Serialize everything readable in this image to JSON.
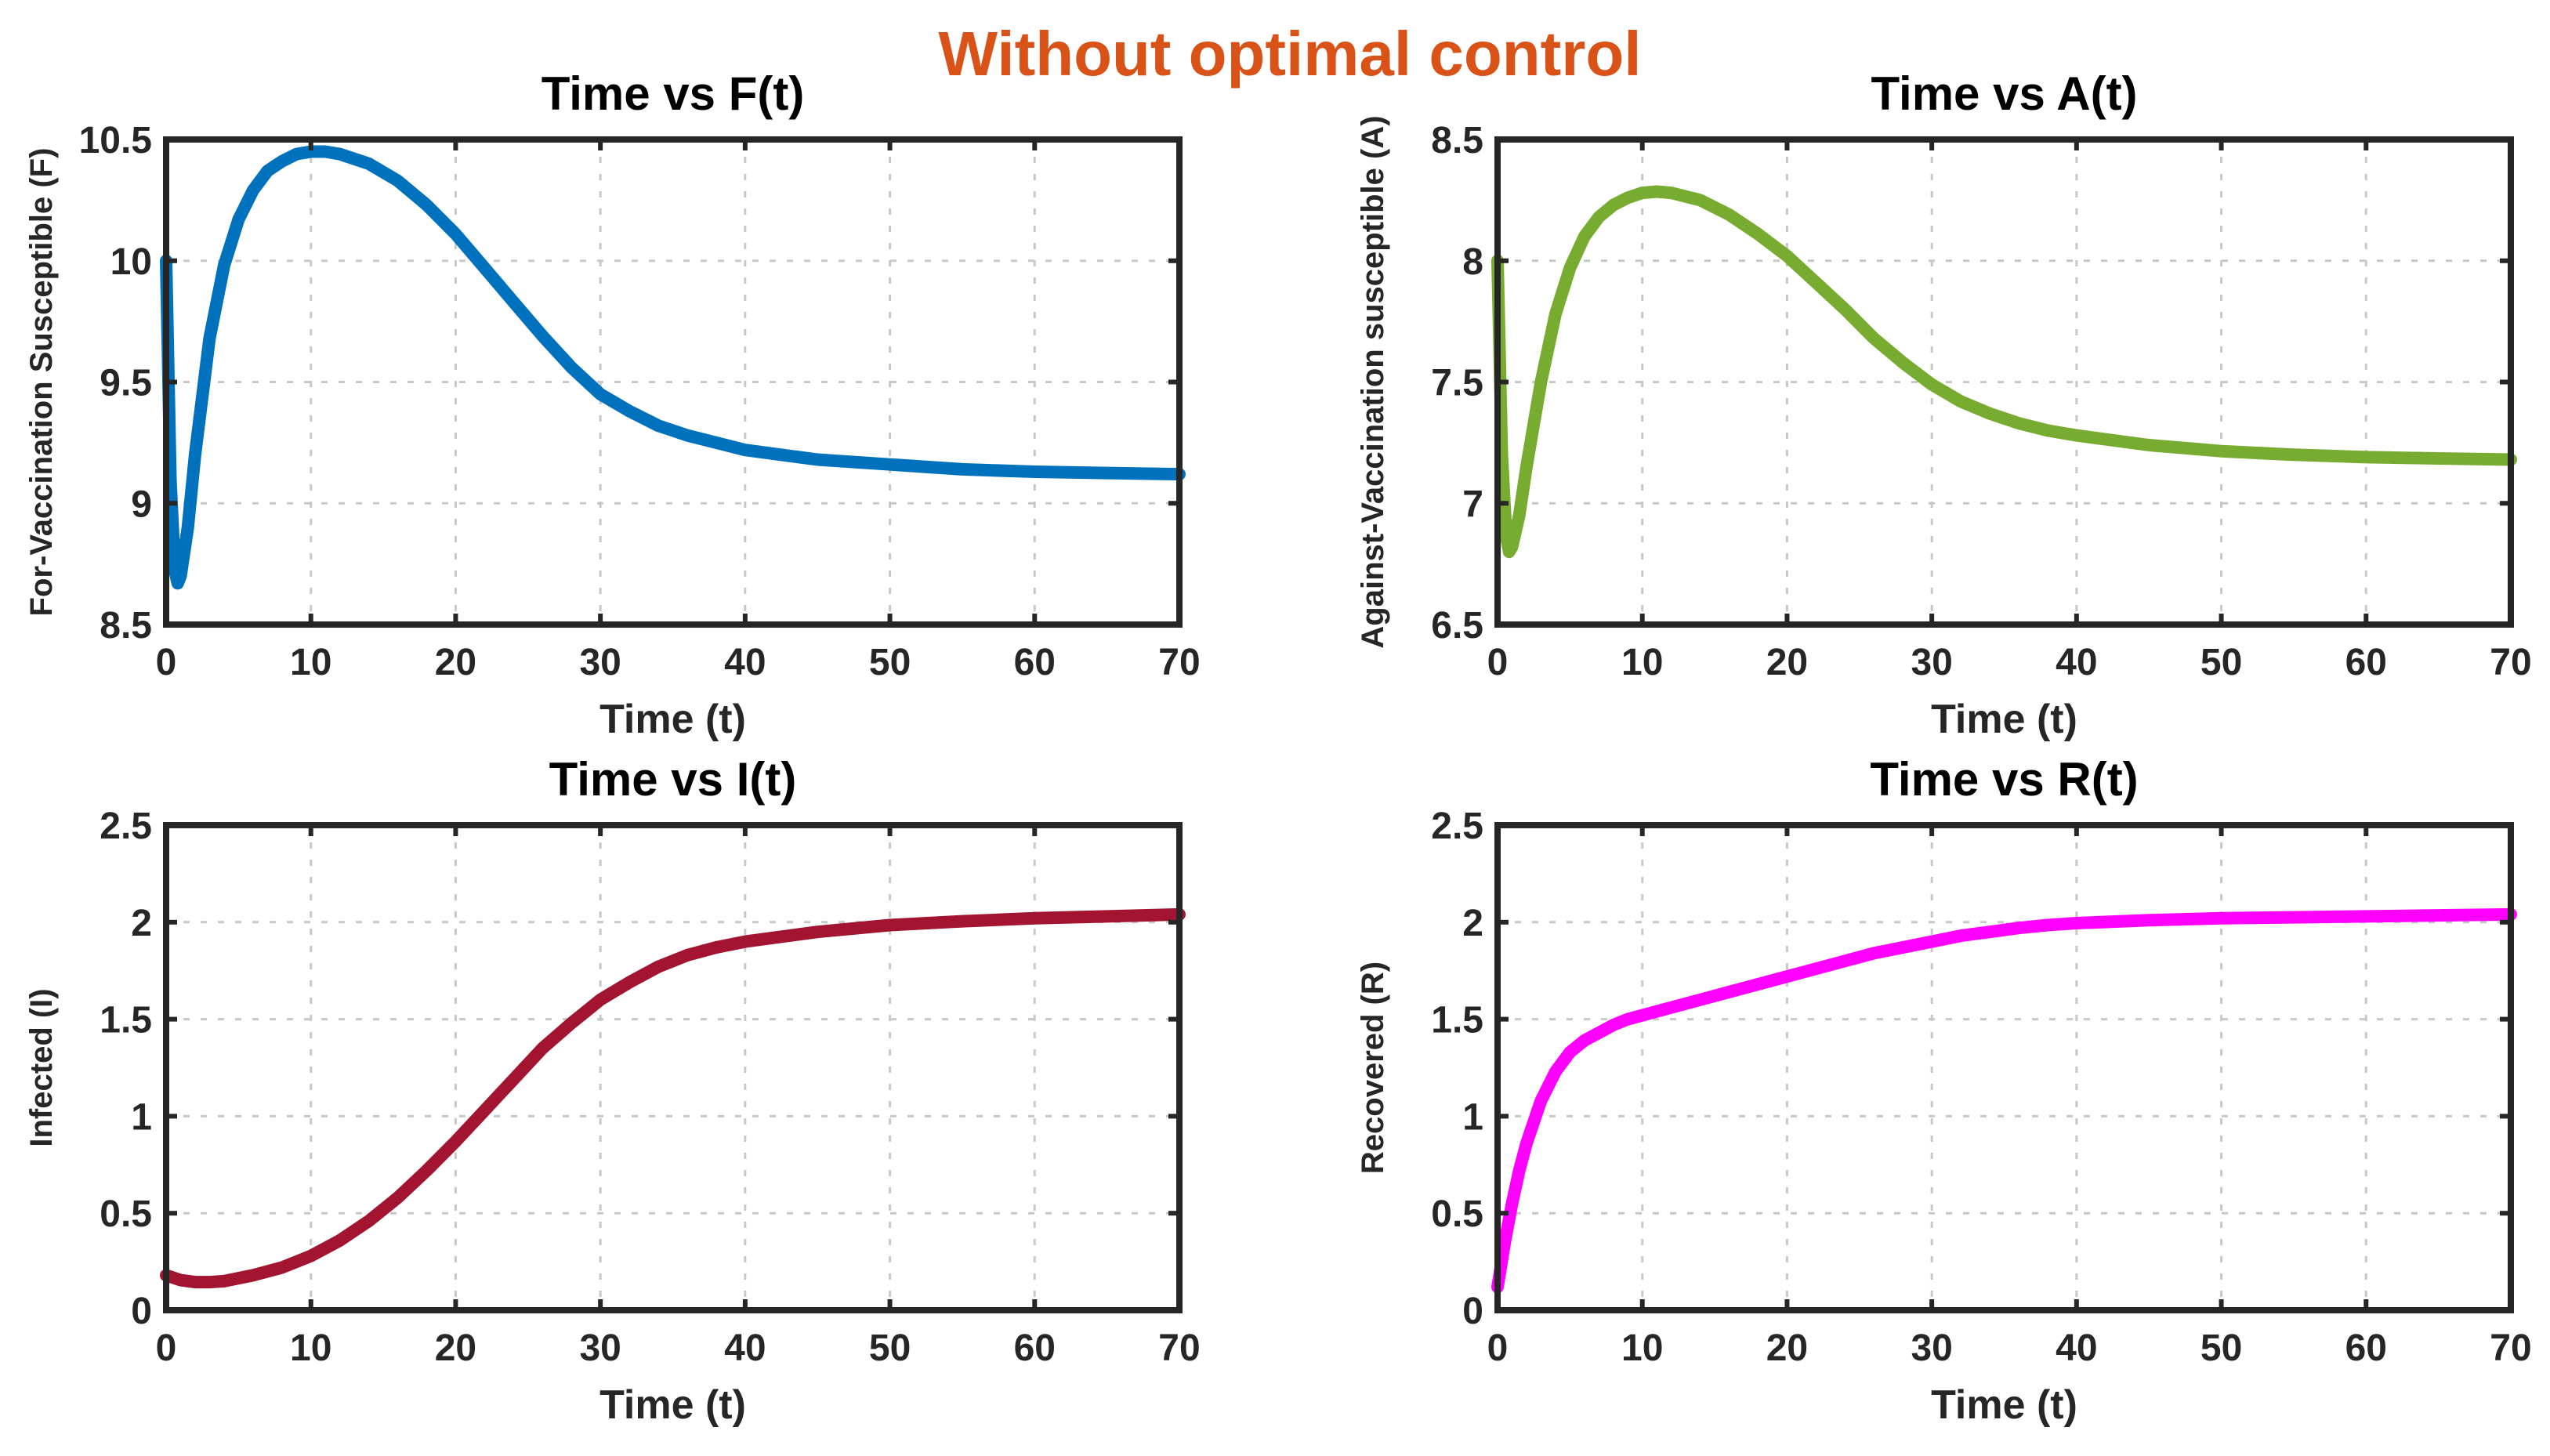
{
  "suptitle": "Without optimal control",
  "chart_data": [
    {
      "type": "line",
      "title": "Time vs F(t)",
      "xlabel": "Time (t)",
      "ylabel": "For-Vaccination Susceptible (F)",
      "xlim": [
        0,
        70
      ],
      "ylim": [
        8.5,
        10.5
      ],
      "xticks": [
        0,
        10,
        20,
        30,
        40,
        50,
        60,
        70
      ],
      "yticks": [
        8.5,
        9,
        9.5,
        10,
        10.5
      ],
      "ytick_labels": [
        "8.5",
        "9",
        "9.5",
        "10",
        "10.5"
      ],
      "grid": true,
      "color": "#0072BD",
      "series": [
        {
          "name": "F",
          "x": [
            0,
            0.3,
            0.6,
            0.8,
            1,
            1.5,
            2,
            3,
            4,
            5,
            6,
            7,
            8,
            9,
            10,
            11,
            12,
            14,
            16,
            18,
            20,
            22,
            24,
            26,
            28,
            30,
            32,
            34,
            36,
            38,
            40,
            45,
            50,
            55,
            60,
            65,
            70
          ],
          "y": [
            10.0,
            9.1,
            8.72,
            8.67,
            8.7,
            8.9,
            9.2,
            9.68,
            9.98,
            10.17,
            10.29,
            10.37,
            10.41,
            10.44,
            10.45,
            10.45,
            10.44,
            10.4,
            10.33,
            10.23,
            10.11,
            9.97,
            9.83,
            9.69,
            9.56,
            9.45,
            9.38,
            9.32,
            9.28,
            9.25,
            9.22,
            9.18,
            9.16,
            9.14,
            9.13,
            9.125,
            9.12
          ]
        }
      ]
    },
    {
      "type": "line",
      "title": "Time vs A(t)",
      "xlabel": "Time (t)",
      "ylabel": "Against-Vaccination susceptible (A)",
      "xlim": [
        0,
        70
      ],
      "ylim": [
        6.5,
        8.5
      ],
      "xticks": [
        0,
        10,
        20,
        30,
        40,
        50,
        60,
        70
      ],
      "yticks": [
        6.5,
        7,
        7.5,
        8,
        8.5
      ],
      "ytick_labels": [
        "6.5",
        "7",
        "7.5",
        "8",
        "8.5"
      ],
      "grid": true,
      "color": "#77AC30",
      "series": [
        {
          "name": "A",
          "x": [
            0,
            0.3,
            0.6,
            0.8,
            1,
            1.5,
            2,
            3,
            4,
            5,
            6,
            7,
            8,
            9,
            10,
            11,
            12,
            14,
            16,
            18,
            20,
            22,
            24,
            26,
            28,
            30,
            32,
            34,
            36,
            38,
            40,
            45,
            50,
            55,
            60,
            65,
            70
          ],
          "y": [
            8.0,
            7.2,
            6.86,
            6.8,
            6.82,
            6.95,
            7.15,
            7.5,
            7.78,
            7.97,
            8.1,
            8.18,
            8.23,
            8.26,
            8.28,
            8.285,
            8.28,
            8.25,
            8.19,
            8.11,
            8.02,
            7.91,
            7.8,
            7.68,
            7.58,
            7.49,
            7.42,
            7.37,
            7.33,
            7.3,
            7.28,
            7.24,
            7.215,
            7.2,
            7.19,
            7.185,
            7.18
          ]
        }
      ]
    },
    {
      "type": "line",
      "title": "Time vs I(t)",
      "xlabel": "Time (t)",
      "ylabel": "Infected (I)",
      "xlim": [
        0,
        70
      ],
      "ylim": [
        0,
        2.5
      ],
      "xticks": [
        0,
        10,
        20,
        30,
        40,
        50,
        60,
        70
      ],
      "yticks": [
        0,
        0.5,
        1,
        1.5,
        2,
        2.5
      ],
      "ytick_labels": [
        "0",
        "0.5",
        "1",
        "1.5",
        "2",
        "2.5"
      ],
      "grid": true,
      "color": "#A2142F",
      "series": [
        {
          "name": "I",
          "x": [
            0,
            1,
            2,
            3,
            4,
            6,
            8,
            10,
            12,
            14,
            16,
            18,
            20,
            22,
            24,
            26,
            28,
            30,
            32,
            34,
            36,
            38,
            40,
            45,
            50,
            55,
            60,
            65,
            70
          ],
          "y": [
            0.18,
            0.155,
            0.145,
            0.145,
            0.15,
            0.18,
            0.22,
            0.28,
            0.36,
            0.46,
            0.58,
            0.72,
            0.87,
            1.03,
            1.19,
            1.35,
            1.48,
            1.6,
            1.69,
            1.77,
            1.83,
            1.87,
            1.9,
            1.95,
            1.985,
            2.005,
            2.02,
            2.03,
            2.04
          ]
        }
      ]
    },
    {
      "type": "line",
      "title": "Time vs R(t)",
      "xlabel": "Time (t)",
      "ylabel": "Recovered (R)",
      "xlim": [
        0,
        70
      ],
      "ylim": [
        0,
        2.5
      ],
      "xticks": [
        0,
        10,
        20,
        30,
        40,
        50,
        60,
        70
      ],
      "yticks": [
        0,
        0.5,
        1,
        1.5,
        2,
        2.5
      ],
      "ytick_labels": [
        "0",
        "0.5",
        "1",
        "1.5",
        "2",
        "2.5"
      ],
      "grid": true,
      "color": "#FF00FF",
      "series": [
        {
          "name": "R",
          "x": [
            0,
            0.5,
            1,
            1.5,
            2,
            3,
            4,
            5,
            6,
            7,
            8,
            9,
            10,
            12,
            14,
            16,
            18,
            20,
            22,
            24,
            26,
            28,
            30,
            32,
            34,
            36,
            38,
            40,
            45,
            50,
            55,
            60,
            65,
            70
          ],
          "y": [
            0.12,
            0.35,
            0.55,
            0.72,
            0.86,
            1.08,
            1.23,
            1.33,
            1.39,
            1.43,
            1.47,
            1.5,
            1.52,
            1.56,
            1.6,
            1.64,
            1.68,
            1.72,
            1.76,
            1.8,
            1.84,
            1.87,
            1.9,
            1.93,
            1.95,
            1.97,
            1.985,
            1.995,
            2.01,
            2.02,
            2.025,
            2.03,
            2.035,
            2.04
          ]
        }
      ]
    }
  ]
}
